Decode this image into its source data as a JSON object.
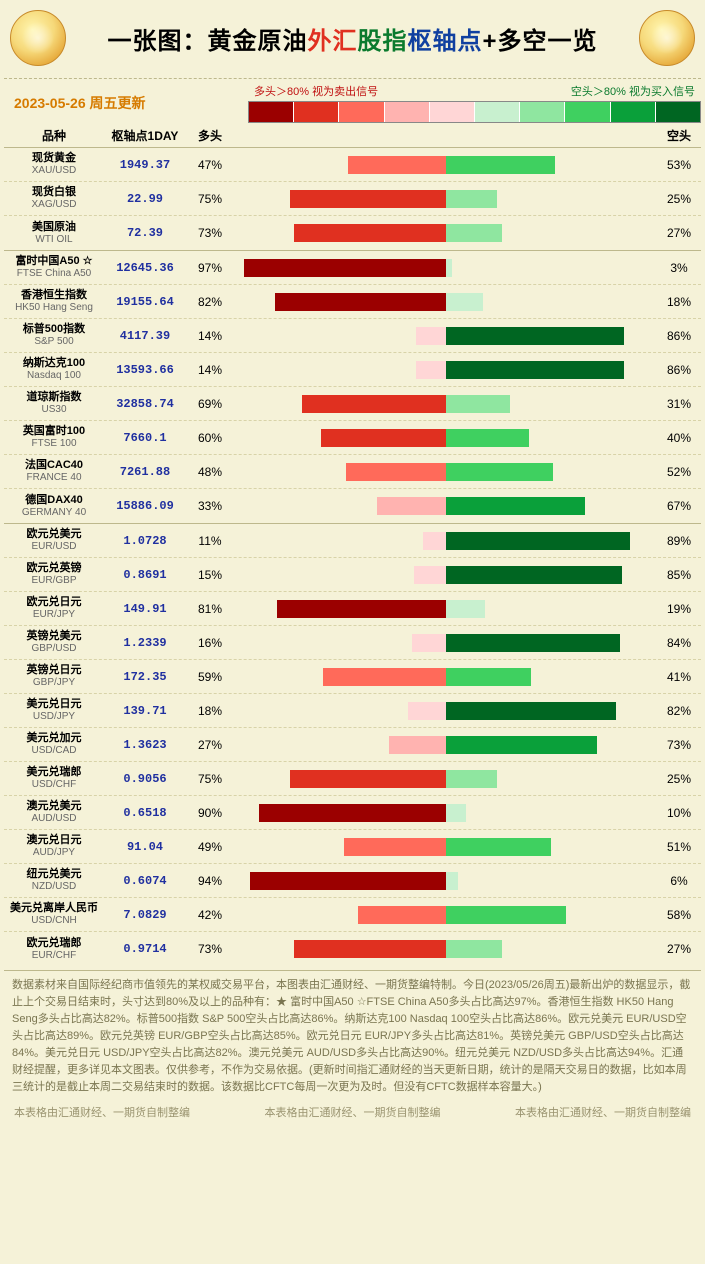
{
  "title_segments": [
    {
      "text": "一张图：",
      "color": "#000"
    },
    {
      "text": "黄金原油",
      "color": "#000"
    },
    {
      "text": "外汇",
      "color": "#e03020"
    },
    {
      "text": "股指",
      "color": "#0a7a2d"
    },
    {
      "text": "枢轴点",
      "color": "#1040a0"
    },
    {
      "text": "+多空一览",
      "color": "#000"
    }
  ],
  "date_text": "2023-05-26  周五更新",
  "legend": {
    "sell_text": "多头＞80%  视为卖出信号",
    "buy_text": "空头＞80%  视为买入信号",
    "colors": [
      "#9b0000",
      "#e03020",
      "#ff6a5a",
      "#ffb3b0",
      "#ffd6d6",
      "#c8f0cf",
      "#8fe6a0",
      "#3fd060",
      "#0aa03a",
      "#006622"
    ]
  },
  "col_headers": {
    "name": "品种",
    "pivot": "枢轴点1DAY",
    "long": "多头",
    "short": "空头"
  },
  "long_color_scale": [
    {
      "min": 80,
      "color": "#9b0000"
    },
    {
      "min": 60,
      "color": "#e03020"
    },
    {
      "min": 40,
      "color": "#ff6a5a"
    },
    {
      "min": 20,
      "color": "#ffb3b0"
    },
    {
      "min": 0,
      "color": "#ffd6d6"
    }
  ],
  "short_color_scale": [
    {
      "min": 80,
      "color": "#006622"
    },
    {
      "min": 60,
      "color": "#0aa03a"
    },
    {
      "min": 40,
      "color": "#3fd060"
    },
    {
      "min": 20,
      "color": "#8fe6a0"
    },
    {
      "min": 0,
      "color": "#c8f0cf"
    }
  ],
  "groups": [
    {
      "rows": [
        {
          "cn": "现货黄金",
          "en": "XAU/USD",
          "pivot": "1949.37",
          "long": 47,
          "short": 53
        },
        {
          "cn": "现货白银",
          "en": "XAG/USD",
          "pivot": "22.99",
          "long": 75,
          "short": 25
        },
        {
          "cn": "美国原油",
          "en": "WTI OIL",
          "pivot": "72.39",
          "long": 73,
          "short": 27
        }
      ]
    },
    {
      "rows": [
        {
          "cn": "富时中国A50 ☆",
          "en": "FTSE China A50",
          "pivot": "12645.36",
          "long": 97,
          "short": 3
        },
        {
          "cn": "香港恒生指数",
          "en": "HK50 Hang Seng",
          "pivot": "19155.64",
          "long": 82,
          "short": 18
        },
        {
          "cn": "标普500指数",
          "en": "S&P 500",
          "pivot": "4117.39",
          "long": 14,
          "short": 86
        },
        {
          "cn": "纳斯达克100",
          "en": "Nasdaq 100",
          "pivot": "13593.66",
          "long": 14,
          "short": 86
        },
        {
          "cn": "道琼斯指数",
          "en": "US30",
          "pivot": "32858.74",
          "long": 69,
          "short": 31
        },
        {
          "cn": "英国富时100",
          "en": "FTSE 100",
          "pivot": "7660.1",
          "long": 60,
          "short": 40
        },
        {
          "cn": "法国CAC40",
          "en": "FRANCE 40",
          "pivot": "7261.88",
          "long": 48,
          "short": 52
        },
        {
          "cn": "德国DAX40",
          "en": "GERMANY 40",
          "pivot": "15886.09",
          "long": 33,
          "short": 67
        }
      ]
    },
    {
      "rows": [
        {
          "cn": "欧元兑美元",
          "en": "EUR/USD",
          "pivot": "1.0728",
          "long": 11,
          "short": 89
        },
        {
          "cn": "欧元兑英镑",
          "en": "EUR/GBP",
          "pivot": "0.8691",
          "long": 15,
          "short": 85
        },
        {
          "cn": "欧元兑日元",
          "en": "EUR/JPY",
          "pivot": "149.91",
          "long": 81,
          "short": 19
        },
        {
          "cn": "英镑兑美元",
          "en": "GBP/USD",
          "pivot": "1.2339",
          "long": 16,
          "short": 84
        },
        {
          "cn": "英镑兑日元",
          "en": "GBP/JPY",
          "pivot": "172.35",
          "long": 59,
          "short": 41
        },
        {
          "cn": "美元兑日元",
          "en": "USD/JPY",
          "pivot": "139.71",
          "long": 18,
          "short": 82
        },
        {
          "cn": "美元兑加元",
          "en": "USD/CAD",
          "pivot": "1.3623",
          "long": 27,
          "short": 73
        },
        {
          "cn": "美元兑瑞郎",
          "en": "USD/CHF",
          "pivot": "0.9056",
          "long": 75,
          "short": 25
        },
        {
          "cn": "澳元兑美元",
          "en": "AUD/USD",
          "pivot": "0.6518",
          "long": 90,
          "short": 10
        },
        {
          "cn": "澳元兑日元",
          "en": "AUD/JPY",
          "pivot": "91.04",
          "long": 49,
          "short": 51
        },
        {
          "cn": "纽元兑美元",
          "en": "NZD/USD",
          "pivot": "0.6074",
          "long": 94,
          "short": 6
        },
        {
          "cn": "美元兑离岸人民币",
          "en": "USD/CNH",
          "pivot": "7.0829",
          "long": 42,
          "short": 58
        },
        {
          "cn": "欧元兑瑞郎",
          "en": "EUR/CHF",
          "pivot": "0.9714",
          "long": 73,
          "short": 27
        }
      ]
    }
  ],
  "footnote": "数据素材来自国际经纪商市值领先的某权威交易平台，本图表由汇通财经、一期货整编特制。今日(2023/05/26周五)最新出炉的数据显示，截止上个交易日结束时，头寸达到80%及以上的品种有：★ 富时中国A50 ☆FTSE China A50多头占比高达97%。香港恒生指数 HK50 Hang Seng多头占比高达82%。标普500指数 S&P 500空头占比高达86%。纳斯达克100 Nasdaq 100空头占比高达86%。欧元兑美元 EUR/USD空头占比高达89%。欧元兑英镑 EUR/GBP空头占比高达85%。欧元兑日元 EUR/JPY多头占比高达81%。英镑兑美元 GBP/USD空头占比高达84%。美元兑日元 USD/JPY空头占比高达82%。澳元兑美元 AUD/USD多头占比高达90%。纽元兑美元 NZD/USD多头占比高达94%。汇通财经提醒，更多详见本文图表。仅供参考，不作为交易依据。(更新时间指汇通财经的当天更新日期，统计的是隔天交易日的数据，比如本周三统计的是截止本周二交易结束时的数据。该数据比CFTC每周一次更为及时。但没有CFTC数据样本容量大。)",
  "credit_text": "本表格由汇通财经、一期货自制整编"
}
